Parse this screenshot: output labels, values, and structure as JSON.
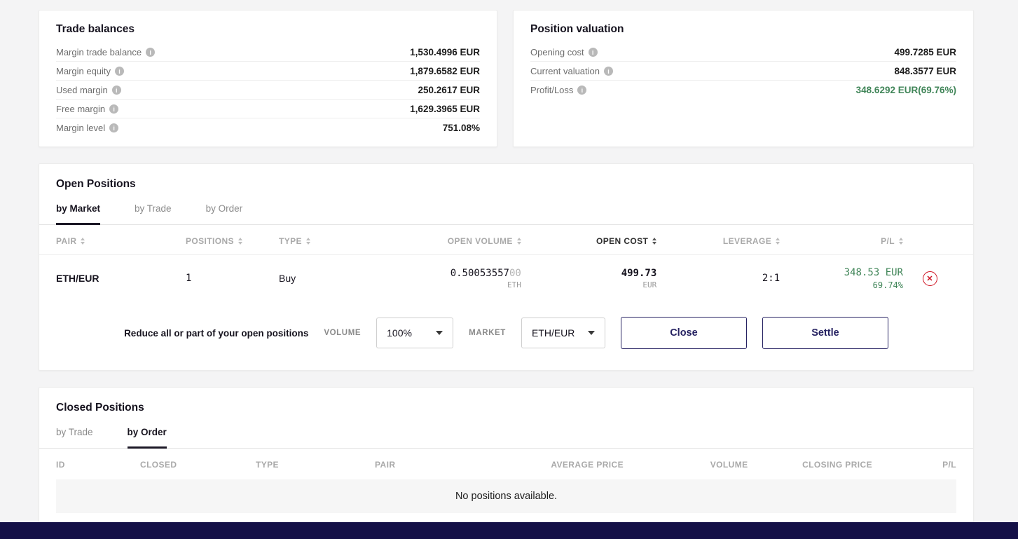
{
  "colors": {
    "green": "#408558",
    "navy": "#262262",
    "red": "#cf1322",
    "footer_bar": "#141047"
  },
  "trade_balances": {
    "title": "Trade balances",
    "rows": [
      {
        "label": "Margin trade balance",
        "value": "1,530.4996 EUR"
      },
      {
        "label": "Margin equity",
        "value": "1,879.6582 EUR"
      },
      {
        "label": "Used margin",
        "value": "250.2617 EUR"
      },
      {
        "label": "Free margin",
        "value": "1,629.3965 EUR"
      },
      {
        "label": "Margin level",
        "value": "751.08%"
      }
    ]
  },
  "position_valuation": {
    "title": "Position valuation",
    "rows": [
      {
        "label": "Opening cost",
        "value": "499.7285 EUR"
      },
      {
        "label": "Current valuation",
        "value": "848.3577 EUR"
      },
      {
        "label": "Profit/Loss",
        "value": "348.6292 EUR(69.76%)"
      }
    ]
  },
  "open_positions": {
    "title": "Open Positions",
    "tabs": [
      {
        "label": "by Market"
      },
      {
        "label": "by Trade"
      },
      {
        "label": "by Order"
      }
    ],
    "columns": [
      "PAIR",
      "POSITIONS",
      "TYPE",
      "OPEN VOLUME",
      "OPEN COST",
      "LEVERAGE",
      "P/L"
    ],
    "row": {
      "pair": "ETH/EUR",
      "positions": "1",
      "type": "Buy",
      "open_volume_main": "0.50053557",
      "open_volume_dim": "00",
      "open_volume_unit": "ETH",
      "open_cost": "499.73",
      "open_cost_unit": "EUR",
      "leverage": "2:1",
      "pl_value": "348.53 EUR",
      "pl_percent": "69.74%"
    },
    "reduce": {
      "prompt": "Reduce all or part of your open positions",
      "volume_label": "VOLUME",
      "volume_value": "100%",
      "market_label": "MARKET",
      "market_value": "ETH/EUR",
      "close_label": "Close",
      "settle_label": "Settle"
    }
  },
  "closed_positions": {
    "title": "Closed Positions",
    "tabs": [
      {
        "label": "by Trade"
      },
      {
        "label": "by Order"
      }
    ],
    "columns": [
      "ID",
      "CLOSED",
      "TYPE",
      "PAIR",
      "AVERAGE PRICE",
      "VOLUME",
      "CLOSING PRICE",
      "P/L"
    ],
    "empty_text": "No positions available."
  }
}
